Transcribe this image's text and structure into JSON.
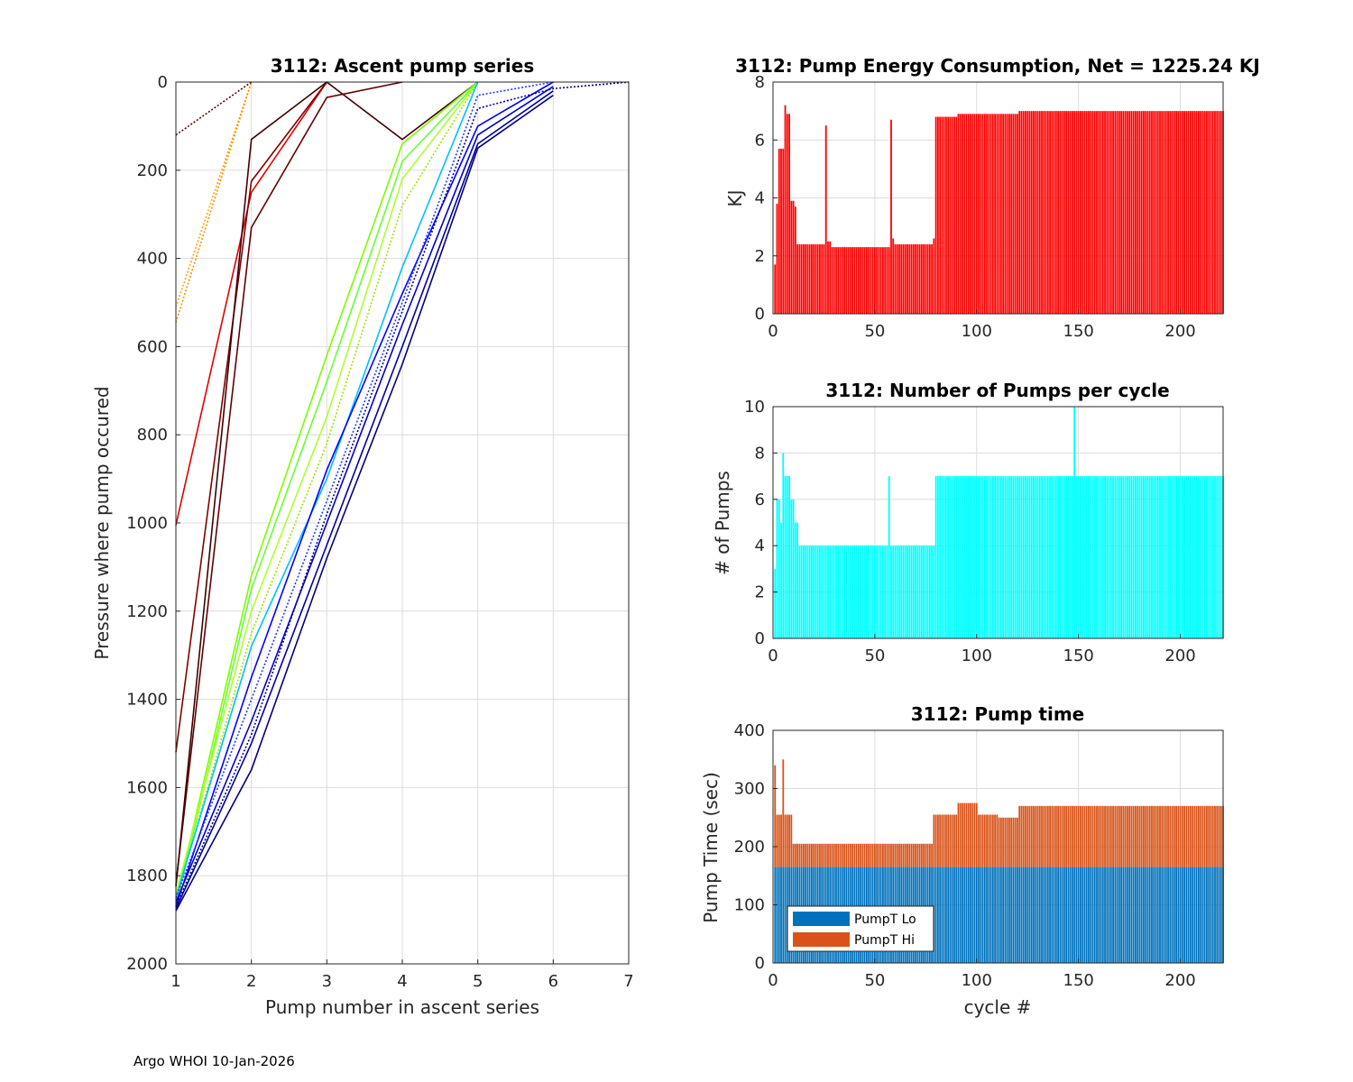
{
  "footer": "Argo WHOI 10-Jan-2026",
  "chart_data": [
    {
      "id": "ascent",
      "type": "line",
      "title": "3112: Ascent pump series",
      "xlabel": "Pump number in ascent series",
      "ylabel": "Pressure where pump occured",
      "xlim": [
        1,
        7
      ],
      "ylim": [
        0,
        2000
      ],
      "y_reversed": true,
      "xticks": [
        "1",
        "2",
        "3",
        "4",
        "5",
        "6",
        "7"
      ],
      "yticks": [
        "0",
        "200",
        "400",
        "600",
        "800",
        "1000",
        "1200",
        "1400",
        "1600",
        "1800",
        "2000"
      ],
      "series": [
        {
          "name": "orange-early",
          "color": "#FFA500",
          "style": "dotted",
          "x": [
            1,
            2
          ],
          "y": [
            510,
            0
          ]
        },
        {
          "name": "orange-early-2",
          "color": "#FF8C00",
          "style": "dotted",
          "x": [
            1,
            2
          ],
          "y": [
            545,
            0
          ]
        },
        {
          "name": "red-1000",
          "color": "#E00000",
          "style": "solid",
          "x": [
            1,
            2,
            3
          ],
          "y": [
            1005,
            250,
            0
          ]
        },
        {
          "name": "darkred-1520",
          "color": "#800000",
          "style": "solid",
          "x": [
            1,
            2,
            3
          ],
          "y": [
            1520,
            225,
            0
          ]
        },
        {
          "name": "darkred-1820",
          "color": "#600000",
          "style": "solid",
          "x": [
            1,
            2,
            3,
            4
          ],
          "y": [
            1820,
            330,
            35,
            0
          ]
        },
        {
          "name": "darkred-120",
          "color": "#600000",
          "style": "dotted",
          "x": [
            1,
            2
          ],
          "y": [
            120,
            0
          ]
        },
        {
          "name": "darkred-1820b",
          "color": "#400000",
          "style": "solid",
          "x": [
            1,
            2,
            3,
            4,
            5
          ],
          "y": [
            1825,
            130,
            0,
            130,
            0
          ]
        },
        {
          "name": "green-1",
          "color": "#7CFC00",
          "style": "solid",
          "x": [
            1,
            2,
            3,
            4,
            5
          ],
          "y": [
            1860,
            1120,
            620,
            140,
            0
          ]
        },
        {
          "name": "green-2",
          "color": "#66FF33",
          "style": "solid",
          "x": [
            1,
            2,
            3,
            4,
            5
          ],
          "y": [
            1870,
            1150,
            680,
            180,
            0
          ]
        },
        {
          "name": "green-3",
          "color": "#ADFF2F",
          "style": "solid",
          "x": [
            1,
            2,
            3,
            4,
            5
          ],
          "y": [
            1840,
            1200,
            760,
            220,
            0
          ]
        },
        {
          "name": "green-4",
          "color": "#99E600",
          "style": "dotted",
          "x": [
            1,
            2,
            3,
            4,
            5
          ],
          "y": [
            1855,
            1250,
            820,
            280,
            0
          ]
        },
        {
          "name": "cyan-1",
          "color": "#00BFFF",
          "style": "solid",
          "x": [
            1,
            2,
            3,
            4,
            5
          ],
          "y": [
            1850,
            1280,
            900,
            420,
            0
          ]
        },
        {
          "name": "blue-1",
          "color": "#0000FF",
          "style": "solid",
          "x": [
            1,
            2,
            3,
            4,
            5,
            6
          ],
          "y": [
            1870,
            1350,
            880,
            480,
            100,
            0
          ]
        },
        {
          "name": "blue-2",
          "color": "#0000CD",
          "style": "solid",
          "x": [
            1,
            2,
            3,
            4,
            5,
            6
          ],
          "y": [
            1860,
            1450,
            1000,
            550,
            120,
            10
          ]
        },
        {
          "name": "blue-3",
          "color": "#0000A0",
          "style": "solid",
          "x": [
            1,
            2,
            3,
            4,
            5,
            6
          ],
          "y": [
            1875,
            1500,
            1050,
            600,
            140,
            20
          ]
        },
        {
          "name": "blue-4",
          "color": "#000080",
          "style": "solid",
          "x": [
            1,
            2,
            3,
            4,
            5,
            6
          ],
          "y": [
            1880,
            1560,
            1080,
            640,
            150,
            30
          ]
        },
        {
          "name": "blue-5",
          "color": "#00008B",
          "style": "dotted",
          "x": [
            1,
            2,
            3,
            4,
            5,
            6,
            7
          ],
          "y": [
            1870,
            1480,
            980,
            520,
            60,
            15,
            0
          ]
        },
        {
          "name": "blue-6",
          "color": "#1E3CFF",
          "style": "dotted",
          "x": [
            1,
            2,
            3,
            4,
            5,
            6
          ],
          "y": [
            1850,
            1400,
            950,
            500,
            30,
            0
          ]
        }
      ]
    },
    {
      "id": "energy",
      "type": "bar",
      "title": "3112: Pump Energy Consumption,  Net = 1225.24 KJ",
      "xlabel": "",
      "ylabel": "KJ",
      "xlim": [
        0,
        221
      ],
      "ylim": [
        0,
        8
      ],
      "xticks": [
        "0",
        "50",
        "100",
        "150",
        "200"
      ],
      "yticks": [
        "0",
        "2",
        "4",
        "6",
        "8"
      ],
      "color": "#FF0000",
      "segments": [
        {
          "from": 1,
          "to": 1,
          "value": 1.7
        },
        {
          "from": 2,
          "to": 2,
          "value": 3.8
        },
        {
          "from": 3,
          "to": 5,
          "value": 5.7
        },
        {
          "from": 6,
          "to": 6,
          "value": 7.2
        },
        {
          "from": 7,
          "to": 8,
          "value": 6.9
        },
        {
          "from": 9,
          "to": 10,
          "value": 3.9
        },
        {
          "from": 11,
          "to": 11,
          "value": 3.7
        },
        {
          "from": 12,
          "to": 25,
          "value": 2.4
        },
        {
          "from": 26,
          "to": 26,
          "value": 6.5
        },
        {
          "from": 27,
          "to": 28,
          "value": 2.5
        },
        {
          "from": 29,
          "to": 57,
          "value": 2.3
        },
        {
          "from": 58,
          "to": 58,
          "value": 6.7
        },
        {
          "from": 59,
          "to": 59,
          "value": 2.6
        },
        {
          "from": 60,
          "to": 78,
          "value": 2.4
        },
        {
          "from": 79,
          "to": 79,
          "value": 2.6
        },
        {
          "from": 80,
          "to": 90,
          "value": 6.8
        },
        {
          "from": 91,
          "to": 120,
          "value": 6.9
        },
        {
          "from": 121,
          "to": 150,
          "value": 7.0
        },
        {
          "from": 151,
          "to": 221,
          "value": 7.0
        }
      ]
    },
    {
      "id": "pumps",
      "type": "bar",
      "title": "3112: Number of Pumps per cycle",
      "xlabel": "",
      "ylabel": "# of Pumps",
      "xlim": [
        0,
        221
      ],
      "ylim": [
        0,
        10
      ],
      "xticks": [
        "0",
        "50",
        "100",
        "150",
        "200"
      ],
      "yticks": [
        "0",
        "2",
        "4",
        "6",
        "8",
        "10"
      ],
      "color": "#00FFFF",
      "segments": [
        {
          "from": 1,
          "to": 1,
          "value": 3
        },
        {
          "from": 2,
          "to": 3,
          "value": 6
        },
        {
          "from": 4,
          "to": 4,
          "value": 5
        },
        {
          "from": 5,
          "to": 5,
          "value": 8
        },
        {
          "from": 6,
          "to": 8,
          "value": 7
        },
        {
          "from": 9,
          "to": 10,
          "value": 6
        },
        {
          "from": 11,
          "to": 12,
          "value": 5
        },
        {
          "from": 13,
          "to": 40,
          "value": 4
        },
        {
          "from": 41,
          "to": 56,
          "value": 4
        },
        {
          "from": 57,
          "to": 57,
          "value": 7
        },
        {
          "from": 58,
          "to": 79,
          "value": 4
        },
        {
          "from": 80,
          "to": 90,
          "value": 7
        },
        {
          "from": 91,
          "to": 147,
          "value": 7
        },
        {
          "from": 148,
          "to": 148,
          "value": 10
        },
        {
          "from": 149,
          "to": 221,
          "value": 7
        }
      ]
    },
    {
      "id": "pumptime",
      "type": "bar",
      "stacked": true,
      "title": "3112: Pump time",
      "xlabel": "cycle #",
      "ylabel": "Pump Time (sec)",
      "xlim": [
        0,
        221
      ],
      "ylim": [
        0,
        400
      ],
      "xticks": [
        "0",
        "50",
        "100",
        "150",
        "200"
      ],
      "yticks": [
        "0",
        "100",
        "200",
        "300",
        "400"
      ],
      "legend": {
        "position": "bottom-left",
        "entries": [
          "PumpT Lo",
          "PumpT Hi"
        ]
      },
      "series": [
        {
          "name": "PumpT Lo",
          "color": "#0072BD",
          "segments": [
            {
              "from": 1,
              "to": 221,
              "value": 165
            }
          ]
        },
        {
          "name": "PumpT Hi",
          "color": "#D95319",
          "segments": [
            {
              "from": 1,
              "to": 1,
              "value": 175
            },
            {
              "from": 2,
              "to": 4,
              "value": 90
            },
            {
              "from": 5,
              "to": 5,
              "value": 185
            },
            {
              "from": 6,
              "to": 9,
              "value": 90
            },
            {
              "from": 10,
              "to": 30,
              "value": 40
            },
            {
              "from": 31,
              "to": 78,
              "value": 40
            },
            {
              "from": 79,
              "to": 90,
              "value": 90
            },
            {
              "from": 91,
              "to": 100,
              "value": 110
            },
            {
              "from": 101,
              "to": 110,
              "value": 90
            },
            {
              "from": 111,
              "to": 120,
              "value": 85
            },
            {
              "from": 121,
              "to": 221,
              "value": 105
            }
          ]
        }
      ]
    }
  ]
}
